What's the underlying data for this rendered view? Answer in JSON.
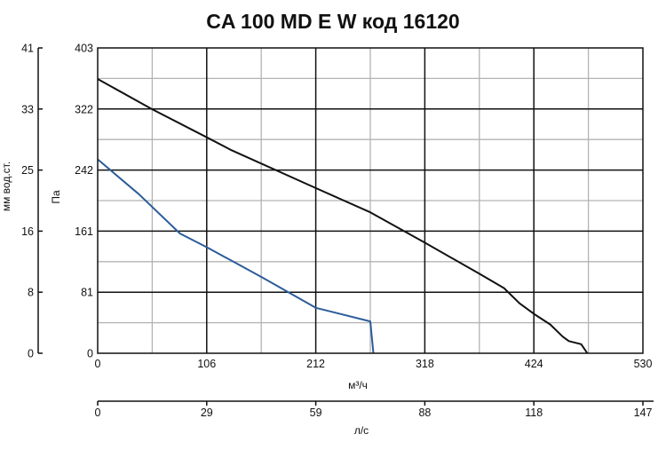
{
  "chart_data": {
    "type": "line",
    "title": "CA 100 MD E W код 16120",
    "x_axis": {
      "label": "м³/ч",
      "range": [
        0,
        530
      ],
      "ticks": [
        "0",
        "106",
        "212",
        "318",
        "424",
        "530"
      ]
    },
    "x_axis_secondary": {
      "label": "л/с",
      "range": [
        0,
        147
      ],
      "ticks": [
        "0",
        "29",
        "59",
        "88",
        "118",
        "147"
      ]
    },
    "y_axis": {
      "label": "Па",
      "range": [
        0,
        403
      ],
      "ticks": [
        "0",
        "81",
        "161",
        "242",
        "322",
        "403"
      ]
    },
    "y_axis_secondary": {
      "label": "мм вод.ст.",
      "range": [
        0,
        41
      ],
      "ticks": [
        "0",
        "8",
        "16",
        "25",
        "33",
        "41"
      ]
    },
    "grid": true,
    "series": [
      {
        "color": "#111111",
        "x": [
          0,
          53,
          106,
          130,
          212,
          265,
          318,
          371,
          395,
          410,
          424,
          440,
          452,
          458,
          470,
          476
        ],
        "y": [
          362,
          322,
          285,
          268,
          218,
          186,
          146,
          105,
          86,
          66,
          52,
          38,
          22,
          16,
          12,
          0
        ]
      },
      {
        "color": "#2b5c9a",
        "x": [
          0,
          40,
          80,
          106,
          160,
          212,
          265,
          268
        ],
        "y": [
          256,
          210,
          158,
          140,
          100,
          60,
          42,
          0
        ]
      }
    ],
    "series_names_note": ""
  }
}
